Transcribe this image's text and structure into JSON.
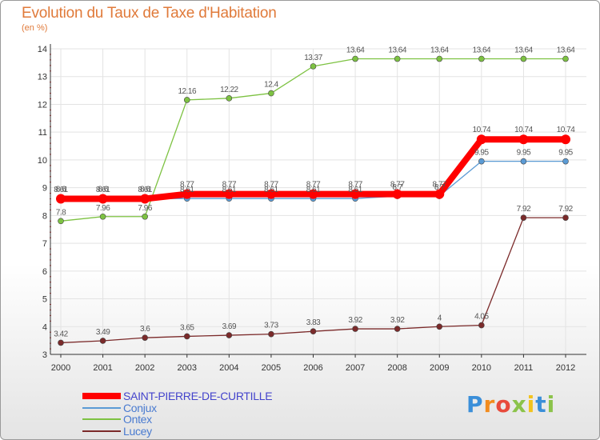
{
  "chart_data": {
    "type": "line",
    "title": "Evolution du Taux de Taxe d'Habitation",
    "ylabel": "(en %)",
    "xlabel": "",
    "ylim": [
      3,
      14
    ],
    "yticks": [
      "3",
      "4",
      "5",
      "6",
      "7",
      "8",
      "9",
      "10",
      "11",
      "12",
      "13",
      "14"
    ],
    "categories": [
      "2000",
      "2001",
      "2002",
      "2003",
      "2004",
      "2005",
      "2006",
      "2007",
      "2008",
      "2009",
      "2010",
      "2011",
      "2012"
    ],
    "series": [
      {
        "name": "SAINT-PIERRE-DE-CURTILLE",
        "color": "#ff0000",
        "values": [
          8.6,
          8.6,
          8.6,
          8.77,
          8.77,
          8.77,
          8.77,
          8.77,
          8.77,
          8.77,
          10.74,
          10.74,
          10.74
        ],
        "labels": [
          "8.6",
          "8.6",
          "8.6",
          "8.77",
          "8.77",
          "8.77",
          "8.77",
          "8.77",
          "8.77",
          "8.77",
          "10.74",
          "10.74",
          "10.74"
        ]
      },
      {
        "name": "Conjux",
        "color": "#5b9bd5",
        "values": [
          8.61,
          8.61,
          8.61,
          8.61,
          8.61,
          8.61,
          8.61,
          8.61,
          8.7,
          8.7,
          9.95,
          9.95,
          9.95
        ],
        "labels": [
          "8.61",
          "8.61",
          "8.61",
          "8.61",
          "8.61",
          "8.61",
          "8.61",
          "8.61",
          "8.7",
          "8.7",
          "9.95",
          "9.95",
          "9.95"
        ]
      },
      {
        "name": "Ontex",
        "color": "#7dc242",
        "values": [
          7.8,
          7.96,
          7.96,
          12.16,
          12.22,
          12.4,
          13.37,
          13.64,
          13.64,
          13.64,
          13.64,
          13.64,
          13.64
        ],
        "labels": [
          "7.8",
          "7.96",
          "7.96",
          "12.16",
          "12.22",
          "12.4",
          "13.37",
          "13.64",
          "13.64",
          "13.64",
          "13.64",
          "13.64",
          "13.64"
        ]
      },
      {
        "name": "Lucey",
        "color": "#7b2a2a",
        "values": [
          3.42,
          3.49,
          3.6,
          3.65,
          3.69,
          3.73,
          3.83,
          3.92,
          3.92,
          4,
          4.05,
          7.92,
          7.92
        ],
        "labels": [
          "3.42",
          "3.49",
          "3.6",
          "3.65",
          "3.69",
          "3.73",
          "3.83",
          "3.92",
          "3.92",
          "4",
          "4.05",
          "7.92",
          "7.92"
        ]
      }
    ],
    "legend_position": "bottom-left"
  },
  "logo": {
    "letters": [
      "P",
      "r",
      "o",
      "x",
      "i",
      "t",
      "i"
    ],
    "colors": [
      "#3b8fd9",
      "#f28c1e",
      "#e84b3c",
      "#8bc34a",
      "#f2c31e",
      "#3b8fd9",
      "#8bc34a"
    ]
  }
}
